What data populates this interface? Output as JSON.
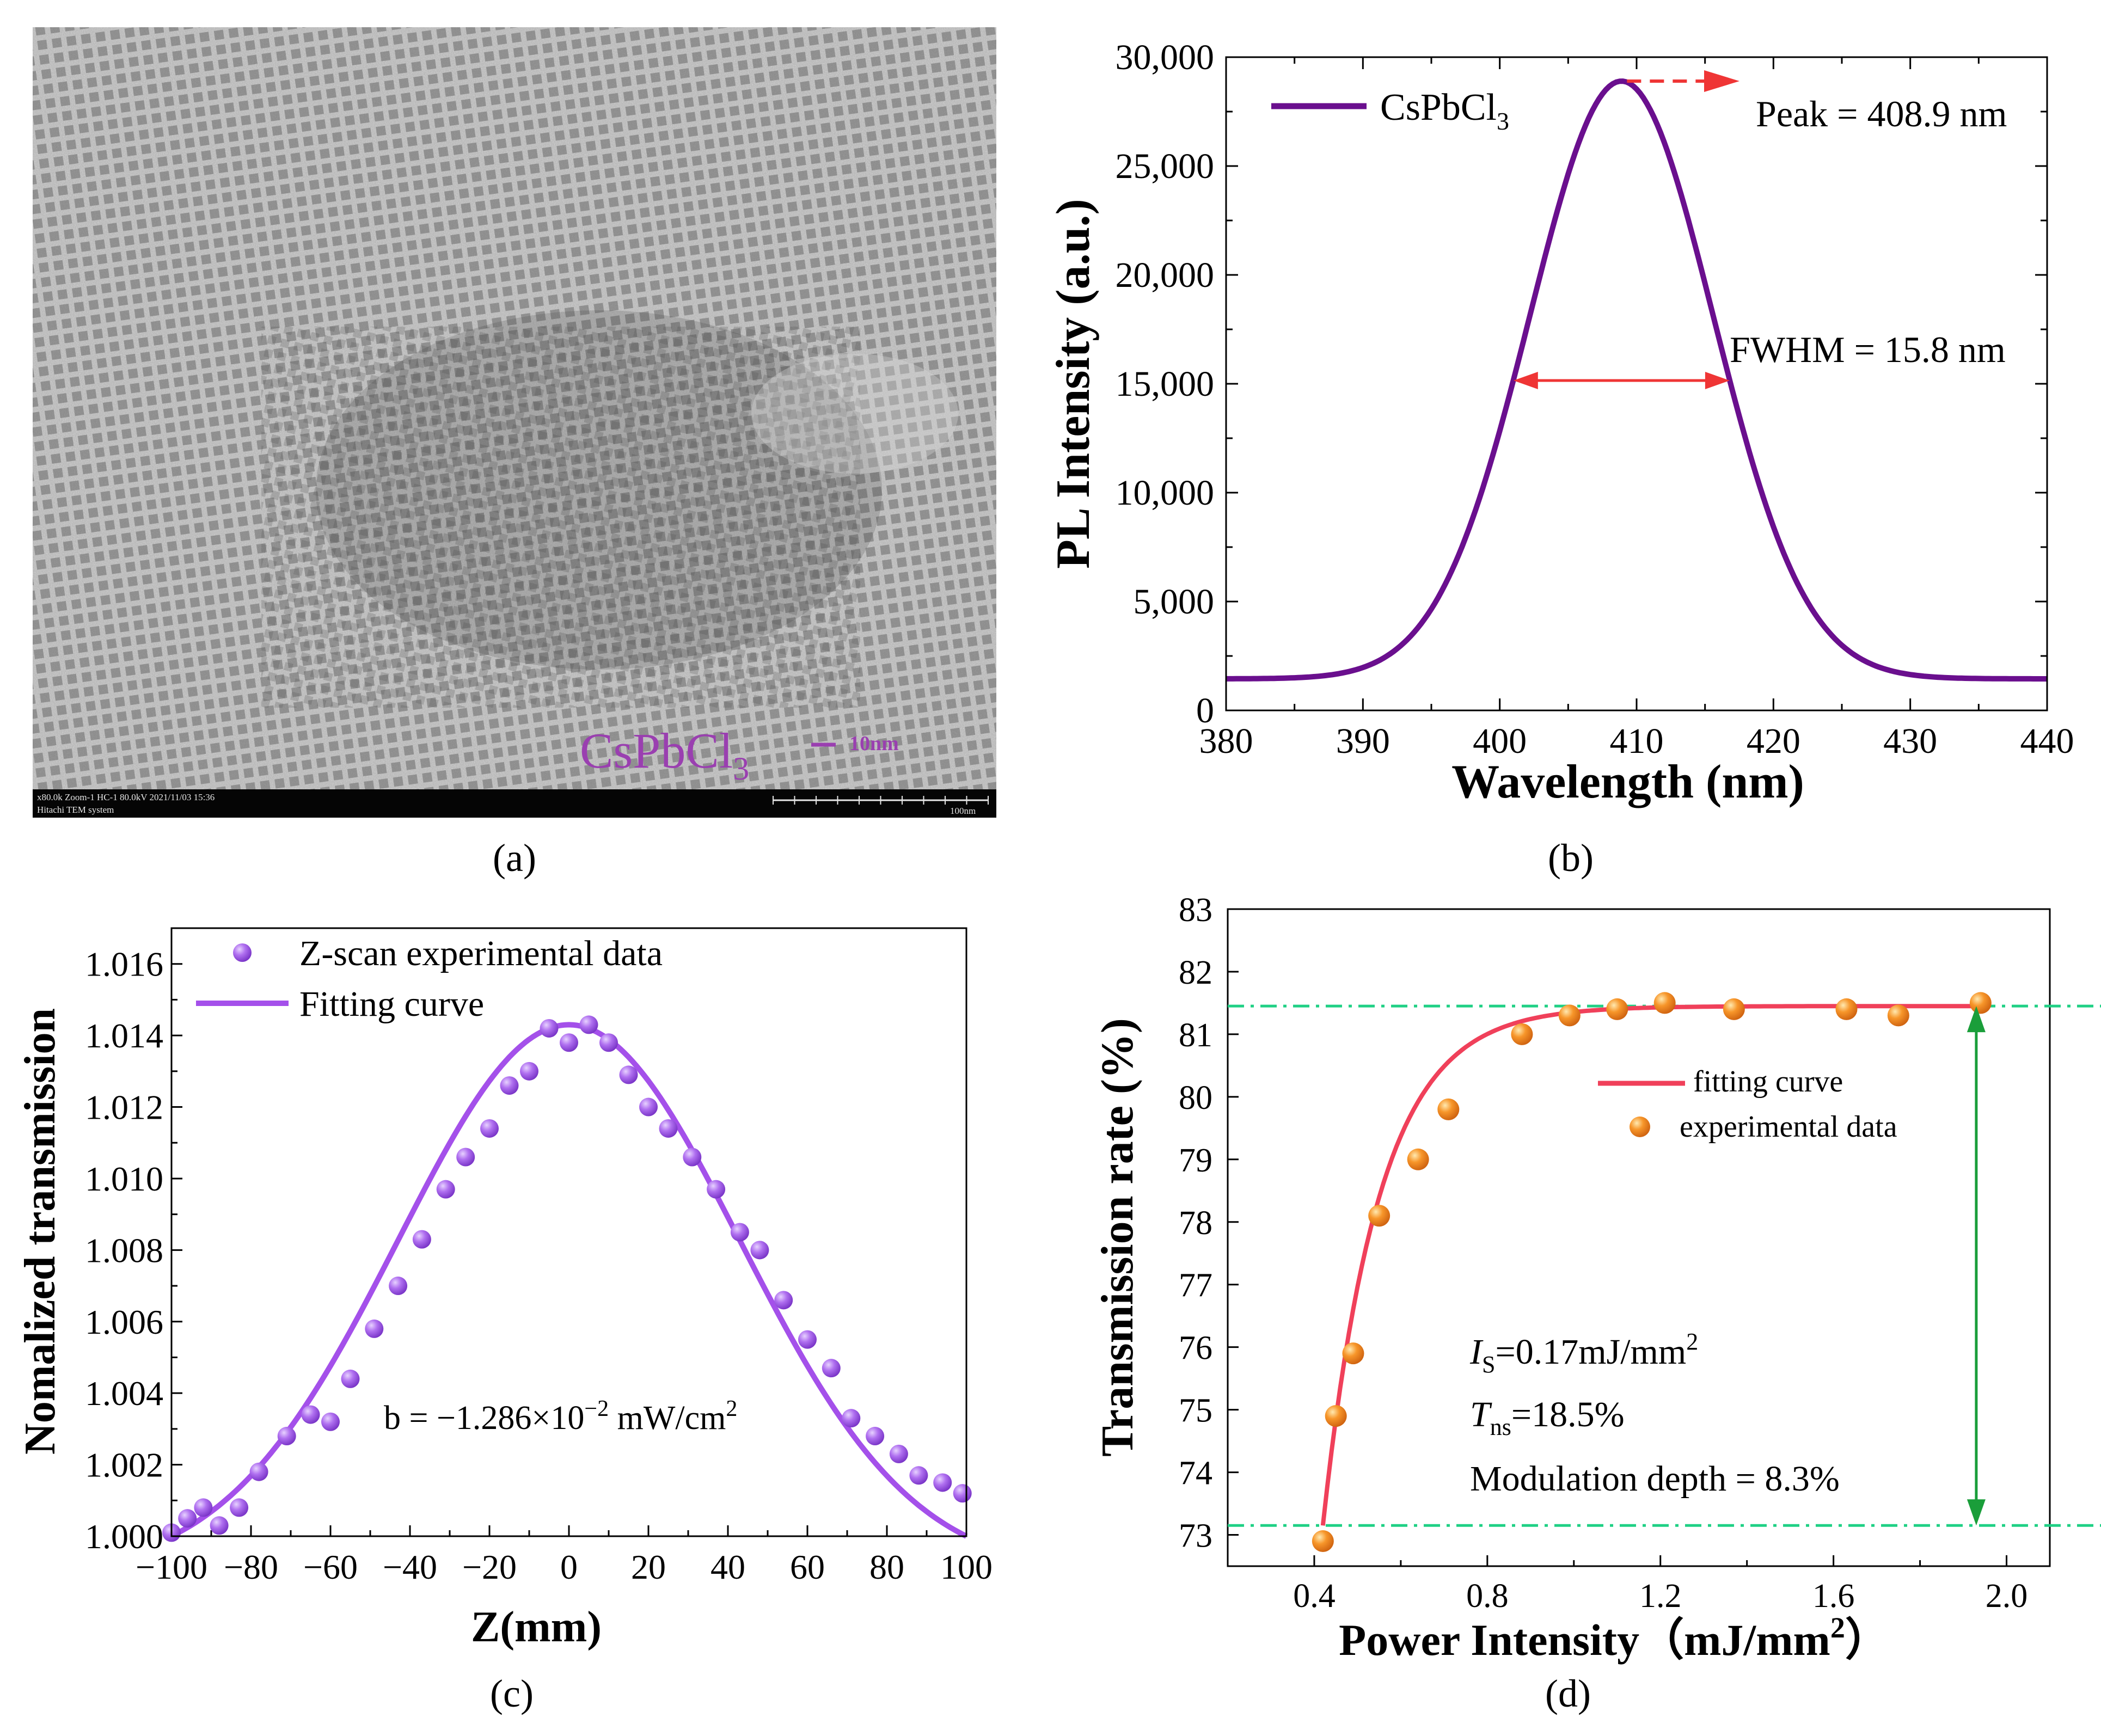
{
  "captions": {
    "a": "(a)",
    "b": "(b)",
    "c": "(c)",
    "d": "(d)"
  },
  "tem": {
    "label": "CsPbCl",
    "label_sub": "3",
    "scalebar": "10nm",
    "info_line1": "x80.0k Zoom-1 HC-1 80.0kV 2021/11/03 15:36",
    "info_line2": "Hitachi TEM system",
    "info_scale": "100nm"
  },
  "colors": {
    "purple_line": "#6a0f8e",
    "violet": "#a450ea",
    "red": "#ef3535",
    "green": "#1fd085",
    "orange": "#f47f1a",
    "tem_label": "#9a3fb0"
  },
  "chart_data": [
    {
      "id": "b",
      "type": "line",
      "ylabel": "PL Intensity (a.u.)",
      "xlabel": "Wavelength (nm)",
      "xlim": [
        380,
        440
      ],
      "ylim": [
        0,
        30000
      ],
      "xticks": [
        380,
        390,
        400,
        410,
        420,
        430,
        440
      ],
      "xtick_labels": [
        "380",
        "390",
        "400",
        "410",
        "420",
        "430",
        "440"
      ],
      "yticks": [
        0,
        5000,
        10000,
        15000,
        20000,
        25000,
        30000
      ],
      "ytick_labels": [
        "0",
        "5,000",
        "10,000",
        "15,000",
        "20,000",
        "25,000",
        "30,000"
      ],
      "legend": {
        "text": "CsPbCl",
        "sub": "3",
        "position": "top-left"
      },
      "series": [
        {
          "name": "CsPbCl3",
          "peak": 408.9,
          "fwhm": 15.8,
          "amplitude": 27450,
          "baseline": 1450
        }
      ],
      "annotations": {
        "peak": "Peak = 408.9 nm",
        "fwhm": "FWHM = 15.8 nm",
        "fwhm_left": 401.0,
        "fwhm_right": 416.8,
        "fwhm_level": 15150
      }
    },
    {
      "id": "c",
      "type": "scatter",
      "ylabel": "Nomalized transmission",
      "xlabel": "Z(mm)",
      "xlim": [
        -100,
        100
      ],
      "ylim": [
        1.0,
        1.017
      ],
      "xticks": [
        -100,
        -80,
        -60,
        -40,
        -20,
        0,
        20,
        40,
        60,
        80,
        100
      ],
      "xtick_labels": [
        "−100",
        "−80",
        "−60",
        "−40",
        "−20",
        "0",
        "20",
        "40",
        "60",
        "80",
        "100"
      ],
      "yticks": [
        1.0,
        1.002,
        1.004,
        1.006,
        1.008,
        1.01,
        1.012,
        1.014,
        1.016
      ],
      "ytick_labels": [
        "1.000",
        "1.002",
        "1.004",
        "1.006",
        "1.008",
        "1.010",
        "1.012",
        "1.014",
        "1.016"
      ],
      "legend": {
        "entries": [
          "Z-scan experimental data",
          "Fitting curve"
        ],
        "position": "top-left"
      },
      "annotation": {
        "text": "b = −1.286×10",
        "sup": "−2",
        "unit": " mW/cm",
        "unit_sup": "2"
      },
      "fit": {
        "x0": 0,
        "amplitude": 0.0143,
        "width": 43.0
      },
      "series": [
        {
          "name": "Z-scan experimental data",
          "x": [
            -100,
            -96,
            -92,
            -88,
            -83,
            -78,
            -71,
            -65,
            -60,
            -55,
            -49,
            -43,
            -37,
            -31,
            -26,
            -20,
            -15,
            -10,
            -5,
            0,
            5,
            10,
            15,
            20,
            25,
            31,
            37,
            43,
            48,
            54,
            60,
            66,
            71,
            77,
            83,
            88,
            94,
            99
          ],
          "y": [
            1.0001,
            1.0005,
            1.0008,
            1.0003,
            1.0008,
            1.0018,
            1.0028,
            1.0034,
            1.0032,
            1.0044,
            1.0058,
            1.007,
            1.0083,
            1.0097,
            1.0106,
            1.0114,
            1.0126,
            1.013,
            1.0142,
            1.0138,
            1.0143,
            1.0138,
            1.0129,
            1.012,
            1.0114,
            1.0106,
            1.0097,
            1.0085,
            1.008,
            1.0066,
            1.0055,
            1.0047,
            1.0033,
            1.0028,
            1.0023,
            1.0017,
            1.0015,
            1.0012
          ]
        }
      ]
    },
    {
      "id": "d",
      "type": "scatter",
      "ylabel": "Transmission rate (%)",
      "xlabel": "Power Intensity（mJ/mm",
      "xlabel_sup": "2",
      "xlabel_end": "）",
      "xlim": [
        0.2,
        2.1
      ],
      "ylim": [
        72.5,
        83
      ],
      "xticks": [
        0.4,
        0.8,
        1.2,
        1.6,
        2.0
      ],
      "xtick_labels": [
        "0.4",
        "0.8",
        "1.2",
        "1.6",
        "2.0"
      ],
      "yticks": [
        73,
        74,
        75,
        76,
        77,
        78,
        79,
        80,
        81,
        82,
        83
      ],
      "ytick_labels": [
        "73",
        "74",
        "75",
        "76",
        "77",
        "78",
        "79",
        "80",
        "81",
        "82",
        "83"
      ],
      "legend": {
        "entries": [
          "fitting curve",
          "experimental data"
        ],
        "position": "right"
      },
      "annotations": {
        "is_italic": "I",
        "is_sub": "S",
        "is_value": "=0.17mJ/mm",
        "is_sup": "2",
        "tns_italic": "T",
        "tns_sub": "ns",
        "tns_value": "=18.5%",
        "modulation": "Modulation depth = 8.3%"
      },
      "reference_lines": [
        81.45,
        73.15
      ],
      "fit": {
        "x0": 0.42,
        "top": 81.45,
        "bottom": 73.15,
        "tau": 0.13
      },
      "series": [
        {
          "name": "experimental data",
          "x": [
            0.42,
            0.45,
            0.49,
            0.55,
            0.64,
            0.71,
            0.88,
            0.99,
            1.1,
            1.21,
            1.37,
            1.63,
            1.75,
            1.94
          ],
          "y": [
            72.9,
            74.9,
            75.9,
            78.1,
            79.0,
            79.8,
            81.0,
            81.3,
            81.4,
            81.5,
            81.4,
            81.4,
            81.3,
            81.5
          ]
        }
      ]
    }
  ]
}
